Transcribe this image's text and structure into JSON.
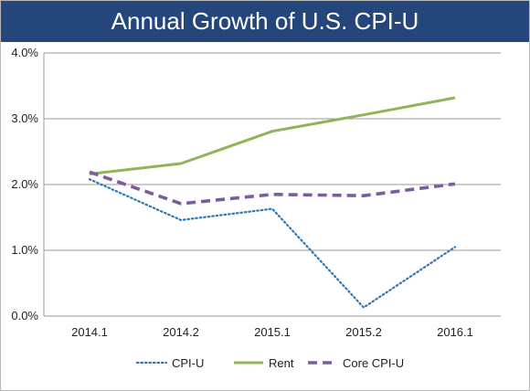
{
  "chart_data": {
    "type": "line",
    "title": "Annual Growth of U.S. CPI-U",
    "xlabel": "",
    "ylabel": "",
    "categories": [
      "2014.1",
      "2014.2",
      "2015.1",
      "2015.2",
      "2016.1"
    ],
    "y_ticks": [
      "0.0%",
      "1.0%",
      "2.0%",
      "3.0%",
      "4.0%"
    ],
    "ylim": [
      0,
      4
    ],
    "grid": true,
    "legend_position": "bottom",
    "series": [
      {
        "name": "CPI-U",
        "values": [
          2.08,
          1.46,
          1.63,
          0.13,
          1.05
        ],
        "color": "#2e75b6",
        "style": "dotted"
      },
      {
        "name": "Rent",
        "values": [
          2.16,
          2.32,
          2.81,
          3.06,
          3.32
        ],
        "color": "#8fb55a",
        "style": "solid"
      },
      {
        "name": "Core CPI-U",
        "values": [
          2.19,
          1.71,
          1.85,
          1.83,
          2.01
        ],
        "color": "#7b5c9e",
        "style": "dashed"
      }
    ]
  }
}
